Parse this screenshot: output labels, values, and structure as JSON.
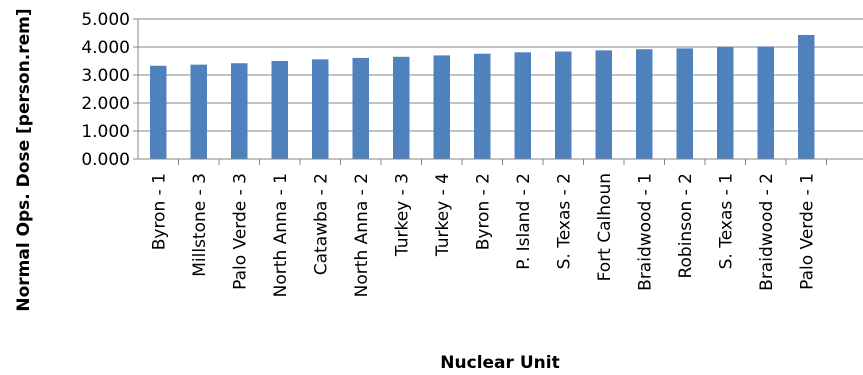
{
  "chart_data": {
    "type": "bar",
    "title": "",
    "xlabel": "Nuclear Unit",
    "ylabel": "Normal Ops. Dose [person.rem]",
    "ylim": [
      0,
      5
    ],
    "yticks": [
      "0.000",
      "1.000",
      "2.000",
      "3.000",
      "4.000",
      "5.000"
    ],
    "grid": true,
    "legend": "none",
    "bar_color": "#4F81BD",
    "categories": [
      "Byron - 1",
      "Millstone - 3",
      "Palo Verde - 3",
      "North Anna - 1",
      "Catawba - 2",
      "North Anna - 2",
      "Turkey - 3",
      "Turkey - 4",
      "Byron - 2",
      "P. Island - 2",
      "S. Texas - 2",
      "Fort Calhoun",
      "Braidwood - 1",
      "Robinson - 2",
      "S. Texas - 1",
      "Braidwood - 2",
      "Palo Verde - 1"
    ],
    "values": [
      3.33,
      3.37,
      3.42,
      3.5,
      3.56,
      3.61,
      3.65,
      3.7,
      3.76,
      3.81,
      3.84,
      3.88,
      3.92,
      3.95,
      3.99,
      4.02,
      4.43
    ]
  }
}
